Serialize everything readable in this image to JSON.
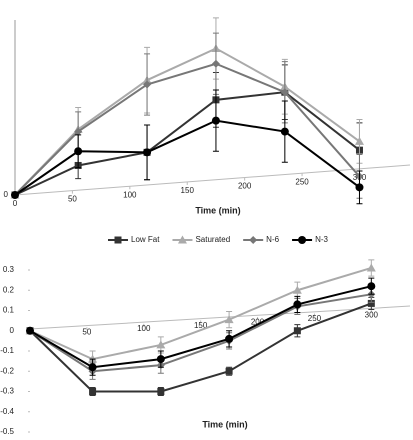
{
  "chart_data": [
    {
      "type": "line",
      "x_label": "Time (min)",
      "x": [
        0,
        55,
        115,
        175,
        235,
        300
      ],
      "xlim": [
        0,
        344
      ],
      "xticks": [
        0,
        50,
        100,
        150,
        200,
        250,
        300
      ],
      "ylim": [
        0,
        160
      ],
      "yticks": [
        0
      ],
      "series": [
        {
          "name": "Low Fat",
          "color": "#333333",
          "marker": "square",
          "values": [
            0,
            27,
            39,
            87,
            94,
            41
          ],
          "errors": [
            0,
            12,
            25,
            25,
            25,
            25
          ]
        },
        {
          "name": "Saturated",
          "color": "#aaaaaa",
          "marker": "triangle",
          "values": [
            0,
            60,
            105,
            134,
            99,
            49
          ],
          "errors": [
            0,
            20,
            30,
            28,
            25,
            20
          ]
        },
        {
          "name": "N-6",
          "color": "#777777",
          "marker": "diamond",
          "values": [
            0,
            58,
            101,
            120,
            94,
            17
          ],
          "errors": [
            0,
            18,
            28,
            28,
            28,
            20
          ]
        },
        {
          "name": "N-3",
          "color": "#000000",
          "marker": "circle",
          "values": [
            0,
            40,
            39,
            68,
            58,
            7
          ],
          "errors": [
            0,
            15,
            25,
            28,
            28,
            15
          ]
        }
      ]
    },
    {
      "type": "line",
      "x_label": "Time (min)",
      "x": [
        0,
        55,
        115,
        175,
        235,
        300
      ],
      "xlim": [
        0,
        334
      ],
      "xticks": [
        50,
        100,
        150,
        200,
        250,
        300
      ],
      "ylim": [
        -0.5,
        0.3
      ],
      "yticks": [
        0.3,
        0.2,
        0.1,
        0,
        -0.1,
        -0.2,
        -0.3,
        -0.4,
        -0.5
      ],
      "series": [
        {
          "color": "#333333",
          "marker": "square",
          "values": [
            0,
            -0.3,
            -0.3,
            -0.2,
            0,
            0.135
          ],
          "errors": [
            0,
            0.02,
            0.02,
            0.02,
            0.03,
            0.03
          ]
        },
        {
          "color": "#aaaaaa",
          "marker": "triangle",
          "values": [
            0,
            -0.14,
            -0.07,
            0.055,
            0.2,
            0.31
          ],
          "errors": [
            0,
            0.04,
            0.04,
            0.04,
            0.04,
            0.04
          ]
        },
        {
          "color": "#777777",
          "marker": "diamond",
          "values": [
            0,
            -0.2,
            -0.17,
            -0.05,
            0.12,
            0.18
          ],
          "errors": [
            0,
            0.04,
            0.04,
            0.04,
            0.04,
            0.04
          ]
        },
        {
          "color": "#000000",
          "marker": "circle",
          "values": [
            0,
            -0.18,
            -0.14,
            -0.04,
            0.13,
            0.22
          ],
          "errors": [
            0,
            0.04,
            0.04,
            0.04,
            0.04,
            0.04
          ]
        }
      ]
    }
  ]
}
